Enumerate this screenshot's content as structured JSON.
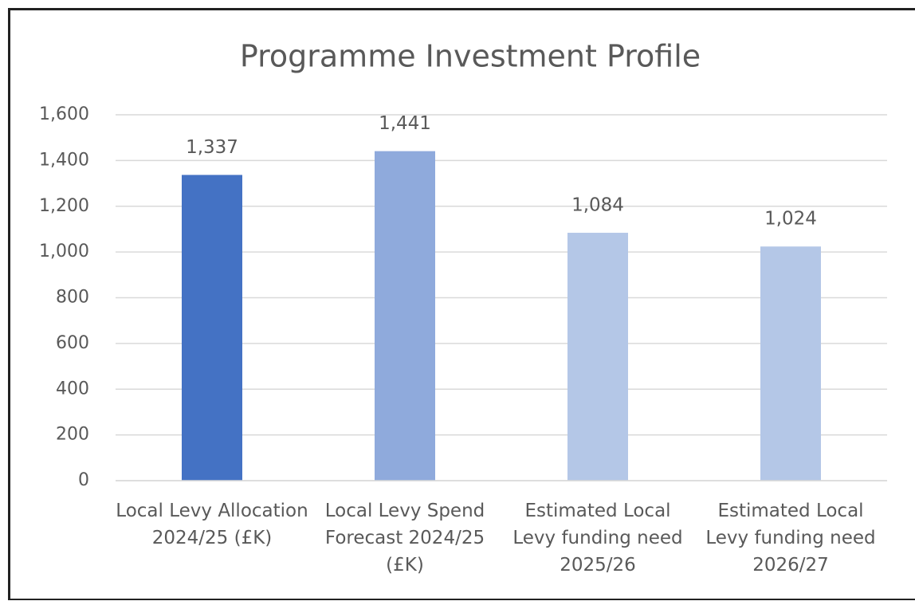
{
  "chart_data": {
    "type": "bar",
    "title": "Programme Investment Profile",
    "categories": [
      "Local Levy Allocation 2024/25 (£K)",
      "Local Levy Spend Forecast 2024/25 (£K)",
      "Estimated Local Levy funding need 2025/26",
      "Estimated Local Levy funding need 2026/27"
    ],
    "values": [
      1337,
      1441,
      1084,
      1024
    ],
    "value_labels": [
      "1,337",
      "1,441",
      "1,084",
      "1,024"
    ],
    "colors": [
      "#4472c4",
      "#8faadc",
      "#b4c7e7",
      "#b4c7e7"
    ],
    "ylim": [
      0,
      1600
    ],
    "yticks": [
      0,
      200,
      400,
      600,
      800,
      {
        "value": 1000,
        "label": "1,000"
      },
      {
        "value": 1200,
        "label": "1,200"
      },
      {
        "value": 1400,
        "label": "1,400"
      },
      {
        "value": 1600,
        "label": "1,600"
      }
    ],
    "grid": true
  }
}
